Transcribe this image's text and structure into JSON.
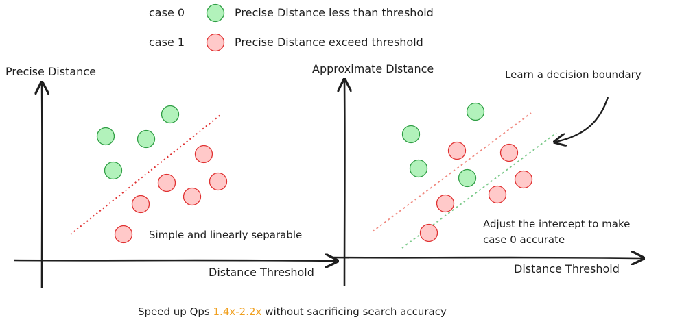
{
  "legend": {
    "case0": {
      "label": "case 0",
      "description": "Precise Distance less than threshold"
    },
    "case1": {
      "label": "case 1",
      "description": "Precise Distance exceed threshold"
    }
  },
  "left_plot": {
    "y_axis_label": "Precise Distance",
    "x_axis_label": "Distance Threshold",
    "annotation": "Simple and linearly separable"
  },
  "right_plot": {
    "y_axis_label": "Approximate Distance",
    "x_axis_label": "Distance Threshold",
    "annotation_top": "Learn a decision boundary",
    "annotation_bottom_line1": "Adjust the intercept to make",
    "annotation_bottom_line2": "case 0 accurate"
  },
  "footer": {
    "text_before": "Speed up Qps",
    "highlight": "1.4x-2.2x",
    "text_after": "without sacrificing search accuracy"
  },
  "colors": {
    "case0_fill": "#b2f2bb",
    "case0_stroke": "#2f9e44",
    "case1_fill": "#ffc9c9",
    "case1_stroke": "#e03131",
    "highlight": "#f0a020"
  }
}
